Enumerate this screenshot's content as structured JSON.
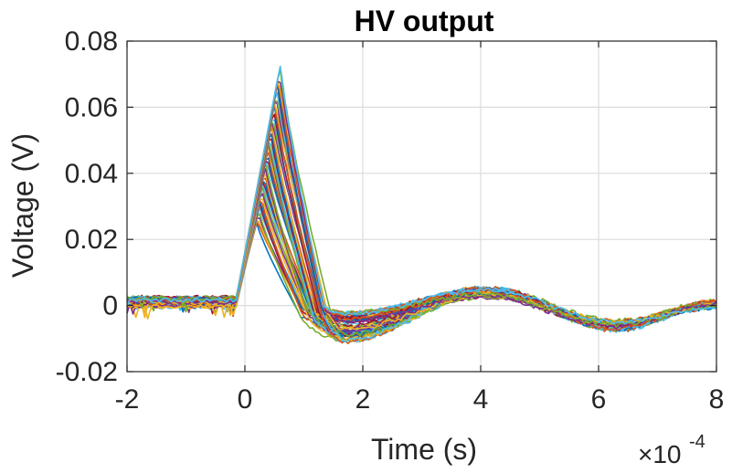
{
  "chart_data": {
    "type": "line",
    "title": "HV output",
    "xlabel": "Time (s)",
    "ylabel": "Voltage (V)",
    "x_exponent_base": "×10",
    "x_exponent_power": "-4",
    "xlim": [
      -2,
      8
    ],
    "ylim": [
      -0.02,
      0.08
    ],
    "xticks": [
      -2,
      0,
      2,
      4,
      6,
      8
    ],
    "xtick_labels": [
      "-2",
      "0",
      "2",
      "4",
      "6",
      "8"
    ],
    "yticks": [
      -0.02,
      0,
      0.02,
      0.04,
      0.06,
      0.08
    ],
    "ytick_labels": [
      "-0.02",
      "0",
      "0.02",
      "0.04",
      "0.06",
      "0.08"
    ],
    "grid": true,
    "series_count": 48,
    "trace_shape": {
      "pre_trigger_level": 0.001,
      "trigger_time": -0.15,
      "peak_time_range": [
        0.2,
        0.6
      ],
      "peak_value_range": [
        0.025,
        0.073
      ],
      "trough_time": 1.7,
      "trough_value_range": [
        -0.002,
        -0.011
      ],
      "secondary_peak_time": 4.1,
      "secondary_peak_value": 0.004,
      "late_trough_time": 6.3,
      "late_trough_value": -0.006,
      "end_value": 0.0,
      "end_time": 8
    },
    "colors": [
      "#0072BD",
      "#D95319",
      "#EDB120",
      "#7E2F8E",
      "#77AC30",
      "#4DBEEE",
      "#A2142F"
    ]
  }
}
